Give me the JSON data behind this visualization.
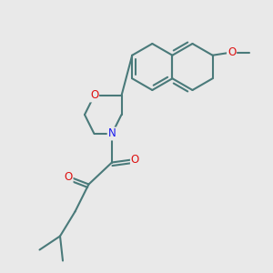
{
  "background_color": "#e9e9e9",
  "bond_color": "#4a7a7a",
  "bond_width": 1.5,
  "N_color": "#1a1aee",
  "O_color": "#dd1111",
  "fig_width": 3.0,
  "fig_height": 3.0,
  "dpi": 100,
  "xlim": [
    0,
    10
  ],
  "ylim": [
    0,
    10
  ]
}
